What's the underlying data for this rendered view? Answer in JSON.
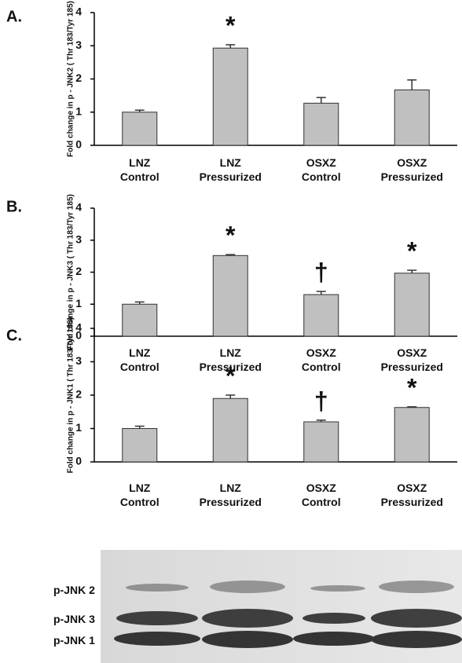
{
  "chart_data": [
    {
      "type": "bar",
      "panel_label": "A.",
      "y_label": "Fold change in p - JNK2 ( Thr 183/Tyr 185)",
      "categories": [
        "LNZ\nControl",
        "LNZ\nPressurized",
        "OSXZ\nControl",
        "OSXZ\nPressurized"
      ],
      "values": [
        1.0,
        2.93,
        1.27,
        1.67
      ],
      "errors": [
        0.06,
        0.1,
        0.17,
        0.3
      ],
      "annotations": [
        null,
        "*",
        null,
        null
      ],
      "color": "#c0c0c0",
      "ylim": [
        0,
        4
      ],
      "yticks": [
        0,
        1,
        2,
        3,
        4
      ]
    },
    {
      "type": "bar",
      "panel_label": "B.",
      "y_label": "Fold change in p - JNK3 ( Thr 183/Tyr 185)",
      "categories": [
        "LNZ\nControl",
        "LNZ\nPressurized",
        "OSXZ\nControl",
        "OSXZ\nPressurized"
      ],
      "values": [
        1.0,
        2.52,
        1.3,
        1.97
      ],
      "errors": [
        0.07,
        0.03,
        0.1,
        0.09
      ],
      "annotations": [
        null,
        "*",
        "†",
        "*"
      ],
      "color": "#c0c0c0",
      "ylim": [
        0,
        4
      ],
      "yticks": [
        0,
        1,
        2,
        3,
        4
      ]
    },
    {
      "type": "bar",
      "panel_label": "C.",
      "y_label": "Fold change in p - JNK1 ( Thr 183/Tyr 185)",
      "categories": [
        "LNZ\nControl",
        "LNZ\nPressurized",
        "OSXZ\nControl",
        "OSXZ\nPressurized"
      ],
      "values": [
        1.0,
        1.9,
        1.2,
        1.63
      ],
      "errors": [
        0.07,
        0.1,
        0.05,
        0.02
      ],
      "annotations": [
        null,
        "*",
        "†",
        "*"
      ],
      "color": "#c0c0c0",
      "ylim": [
        0,
        4
      ],
      "yticks": [
        0,
        1,
        2,
        3,
        4
      ]
    }
  ],
  "blot": {
    "labels": [
      "p-JNK 2",
      "p-JNK 3",
      "p-JNK 1"
    ]
  }
}
